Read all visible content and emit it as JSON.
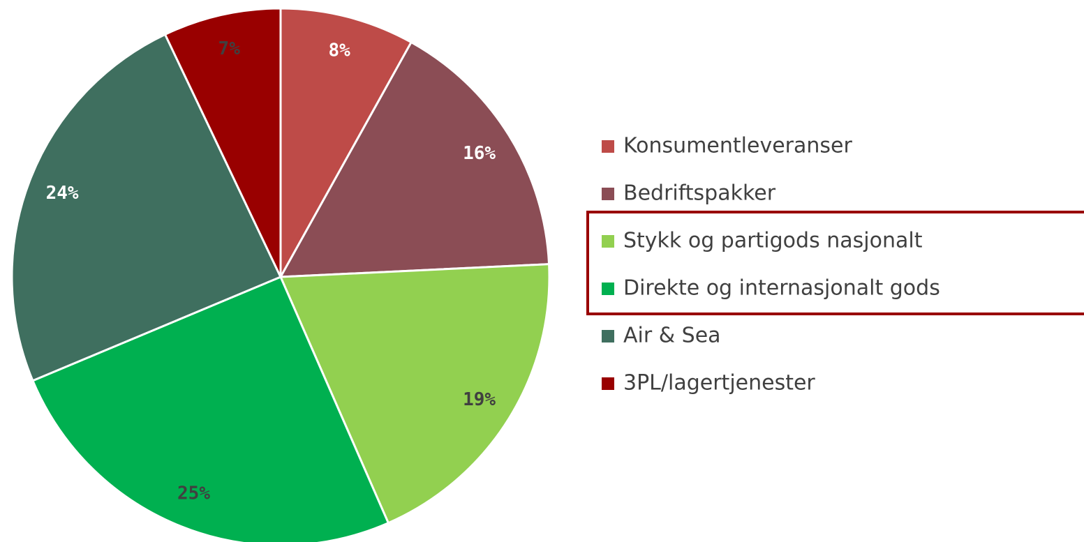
{
  "chart_data": {
    "type": "pie",
    "categories": [
      "Konsumentleveranser",
      "Bedriftspakker",
      "Stykk og partigods nasjonalt",
      "Direkte og internasjonalt gods",
      "Air & Sea",
      "3PL/lagertjenester"
    ],
    "values": [
      8,
      16,
      19,
      25,
      24,
      7
    ],
    "value_labels": [
      "8%",
      "16%",
      "19%",
      "25%",
      "24%",
      "7%"
    ],
    "colors": [
      "#be4b48",
      "#8b4d55",
      "#92d050",
      "#00b050",
      "#3f6f5f",
      "#990000"
    ],
    "label_colors": [
      "#ffffff",
      "#ffffff",
      "#404040",
      "#404040",
      "#ffffff",
      "#404040"
    ],
    "legend": "right"
  }
}
